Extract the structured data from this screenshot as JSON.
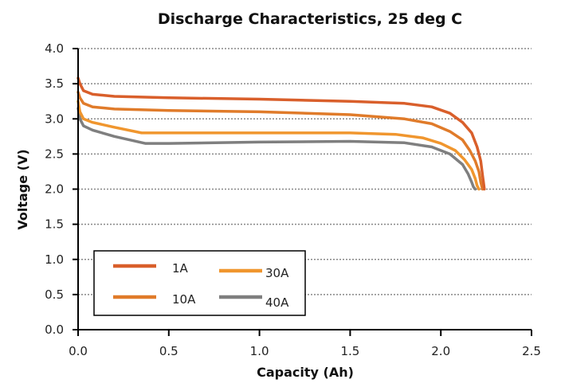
{
  "chart_data": {
    "type": "line",
    "title": "Discharge Characteristics, 25 deg C",
    "xlabel": "Capacity (Ah)",
    "ylabel": "Voltage (V)",
    "xlim": [
      0,
      2.5
    ],
    "ylim": [
      0,
      4.0
    ],
    "xticks": [
      "0.0",
      "0.5",
      "1.0",
      "1.5",
      "2.0",
      "2.5"
    ],
    "yticks": [
      "0.0",
      "0.5",
      "1.0",
      "1.5",
      "2.0",
      "2.5",
      "3.0",
      "3.5",
      "4.0"
    ],
    "grid": "horizontal-dotted",
    "legend_position": "lower-left",
    "series": [
      {
        "name": "1A",
        "color": "#d95f2b",
        "x": [
          0.0,
          0.01,
          0.03,
          0.08,
          0.2,
          0.5,
          1.0,
          1.5,
          1.8,
          1.95,
          2.05,
          2.12,
          2.17,
          2.2,
          2.22,
          2.23,
          2.235,
          2.24
        ],
        "y": [
          3.58,
          3.5,
          3.4,
          3.35,
          3.32,
          3.3,
          3.28,
          3.25,
          3.22,
          3.17,
          3.08,
          2.95,
          2.8,
          2.6,
          2.4,
          2.2,
          2.1,
          2.0
        ]
      },
      {
        "name": "10A",
        "color": "#e07b2a",
        "x": [
          0.0,
          0.01,
          0.03,
          0.08,
          0.2,
          0.5,
          1.0,
          1.5,
          1.8,
          1.95,
          2.05,
          2.12,
          2.16,
          2.19,
          2.21,
          2.22,
          2.23
        ],
        "y": [
          3.38,
          3.3,
          3.22,
          3.17,
          3.14,
          3.12,
          3.1,
          3.06,
          3.0,
          2.93,
          2.82,
          2.7,
          2.55,
          2.4,
          2.25,
          2.1,
          2.0
        ]
      },
      {
        "name": "30A",
        "color": "#f0962e",
        "x": [
          0.0,
          0.01,
          0.03,
          0.08,
          0.2,
          0.35,
          0.5,
          1.0,
          1.5,
          1.75,
          1.9,
          2.0,
          2.08,
          2.13,
          2.17,
          2.19,
          2.2,
          2.21
        ],
        "y": [
          3.25,
          3.1,
          3.0,
          2.95,
          2.88,
          2.8,
          2.8,
          2.8,
          2.8,
          2.78,
          2.73,
          2.65,
          2.55,
          2.42,
          2.28,
          2.15,
          2.05,
          2.0
        ]
      },
      {
        "name": "40A",
        "color": "#7f7f7f",
        "x": [
          0.0,
          0.01,
          0.03,
          0.08,
          0.2,
          0.37,
          0.5,
          1.0,
          1.5,
          1.8,
          1.95,
          2.05,
          2.12,
          2.15,
          2.17,
          2.18,
          2.19
        ],
        "y": [
          3.15,
          3.0,
          2.9,
          2.84,
          2.75,
          2.65,
          2.65,
          2.67,
          2.68,
          2.66,
          2.6,
          2.5,
          2.35,
          2.22,
          2.1,
          2.03,
          2.0
        ]
      }
    ]
  }
}
